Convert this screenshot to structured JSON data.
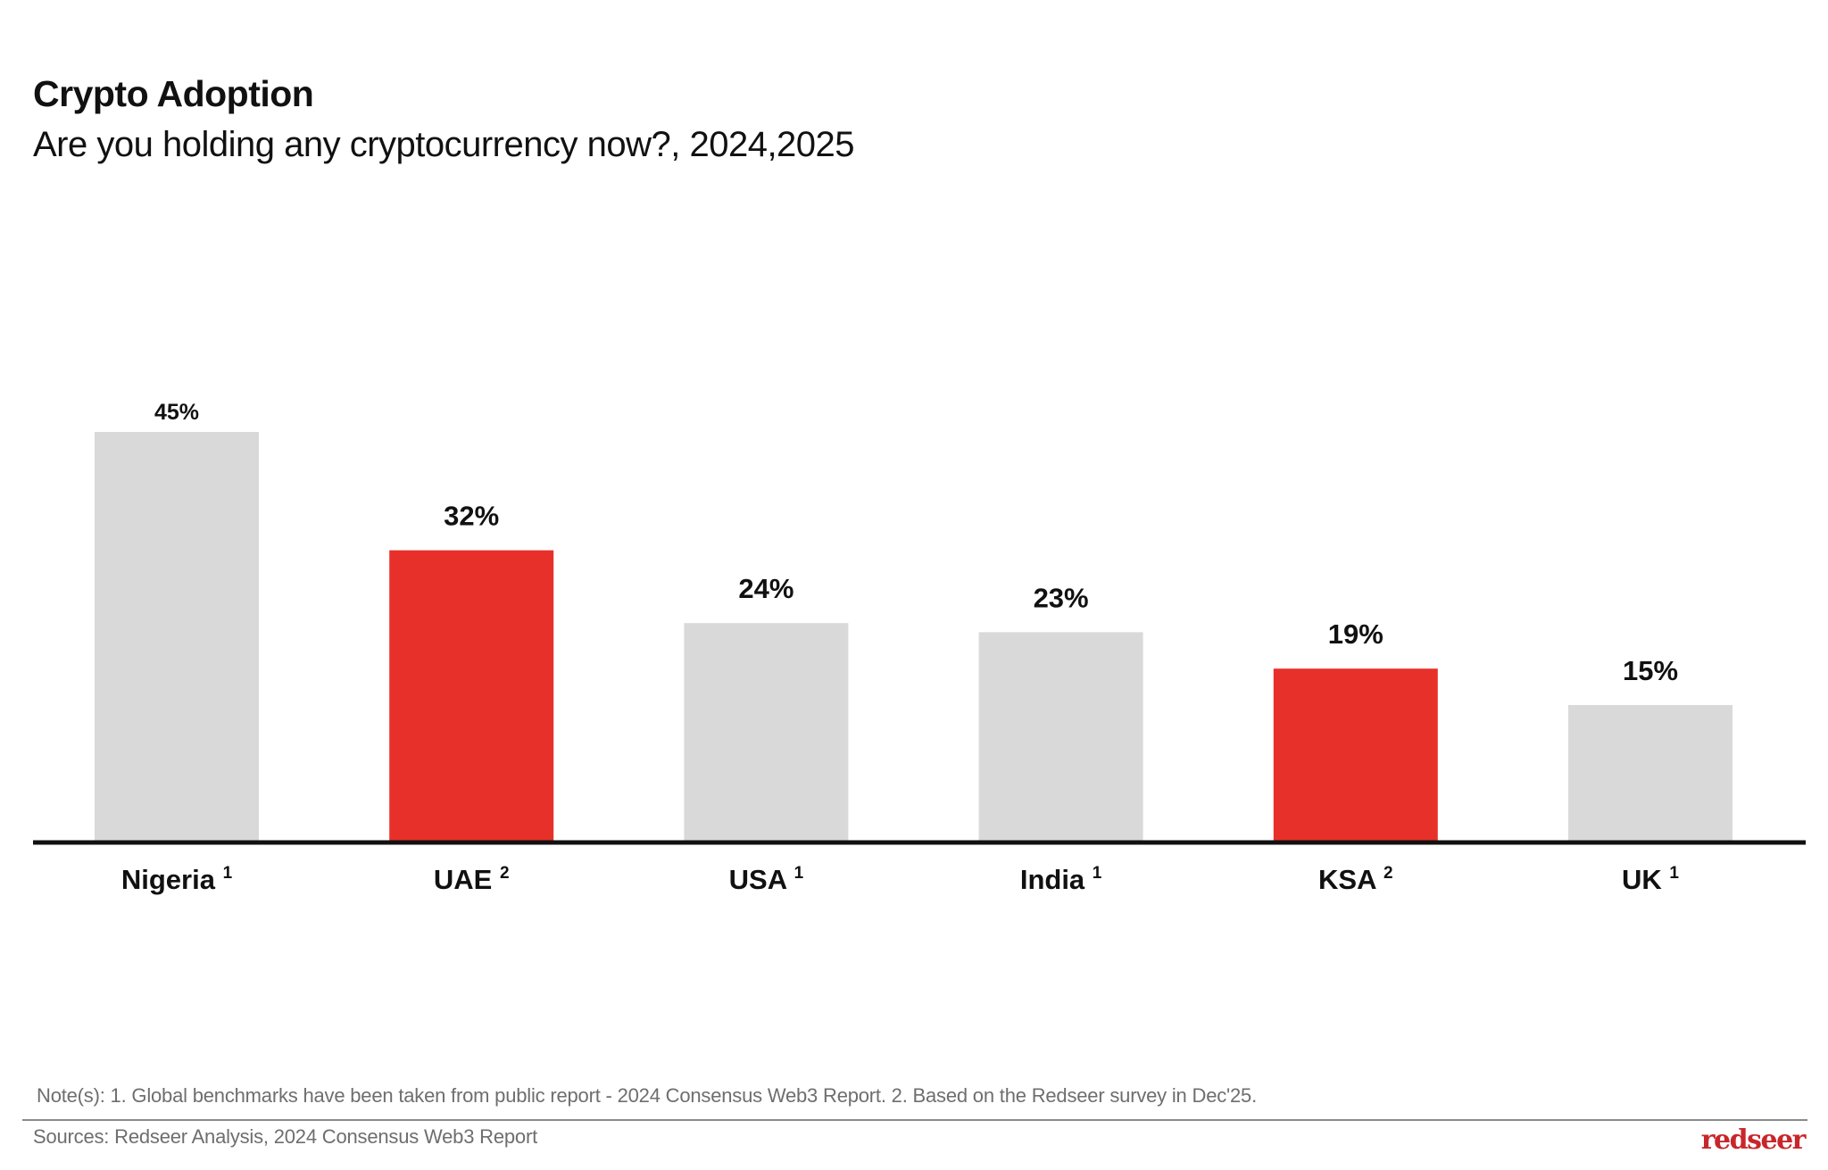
{
  "header": {
    "title": "Crypto Adoption",
    "subtitle": "Are you holding any cryptocurrency now?, 2024,2025"
  },
  "footer": {
    "note": "Note(s): 1. Global benchmarks have been taken from public report - 2024 Consensus Web3 Report. 2. Based on the Redseer survey in Dec'25.",
    "sources": "Sources: Redseer Analysis, 2024 Consensus Web3 Report",
    "logo": "redseer"
  },
  "colors": {
    "highlight": "#E8302A",
    "default": "#D9D9D9",
    "axis": "#111111",
    "brand": "#C8262B"
  },
  "chart_data": {
    "type": "bar",
    "title": "Crypto Adoption",
    "subtitle": "Are you holding any cryptocurrency now?, 2024,2025",
    "xlabel": "",
    "ylabel": "",
    "categories": [
      "Nigeria",
      "UAE",
      "USA",
      "India",
      "KSA",
      "UK"
    ],
    "footnote_refs": [
      "1",
      "2",
      "1",
      "1",
      "2",
      "1"
    ],
    "values": [
      45,
      32,
      24,
      23,
      19,
      15
    ],
    "value_labels": [
      "45%",
      "32%",
      "24%",
      "23%",
      "19%",
      "15%"
    ],
    "highlighted": [
      false,
      true,
      false,
      false,
      true,
      false
    ],
    "unit": "%",
    "ylim": [
      0,
      50
    ],
    "grid": false,
    "legend": "none"
  }
}
